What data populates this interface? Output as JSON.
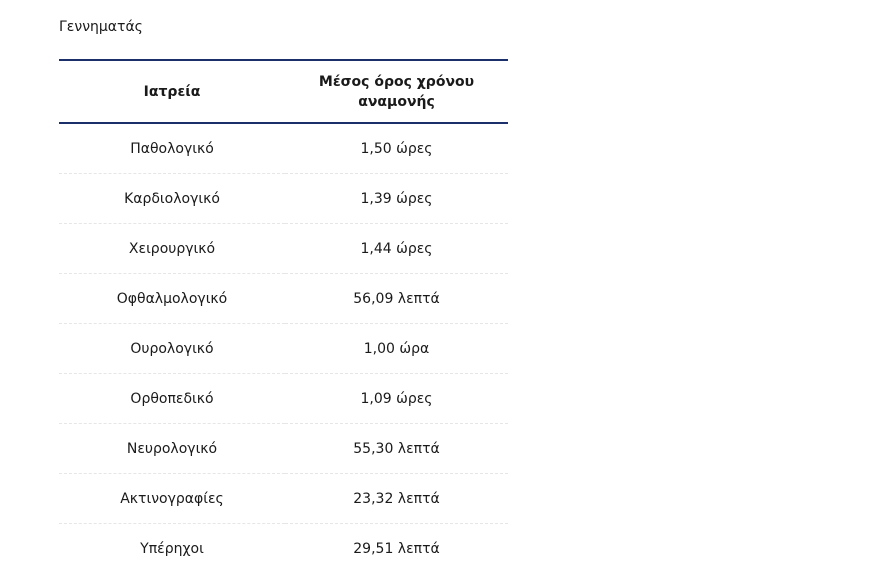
{
  "title": "Γεννηματάς",
  "table": {
    "headers": [
      "Ιατρεία",
      "Μέσος όρος χρόνου αναμονής"
    ],
    "rows": [
      [
        "Παθολογικό",
        "1,50 ώρες"
      ],
      [
        "Καρδιολογικό",
        "1,39 ώρες"
      ],
      [
        "Χειρουργικό",
        "1,44 ώρες"
      ],
      [
        "Οφθαλμολογικό",
        "56,09 λεπτά"
      ],
      [
        "Ουρολογικό",
        "1,00 ώρα"
      ],
      [
        "Ορθοπεδικό",
        "1,09 ώρες"
      ],
      [
        "Νευρολογικό",
        "55,30 λεπτά"
      ],
      [
        "Ακτινογραφίες",
        "23,32 λεπτά"
      ],
      [
        "Υπέρηχοι",
        "29,51 λεπτά"
      ]
    ]
  },
  "colors": {
    "header_border": "#1b2f6b"
  }
}
